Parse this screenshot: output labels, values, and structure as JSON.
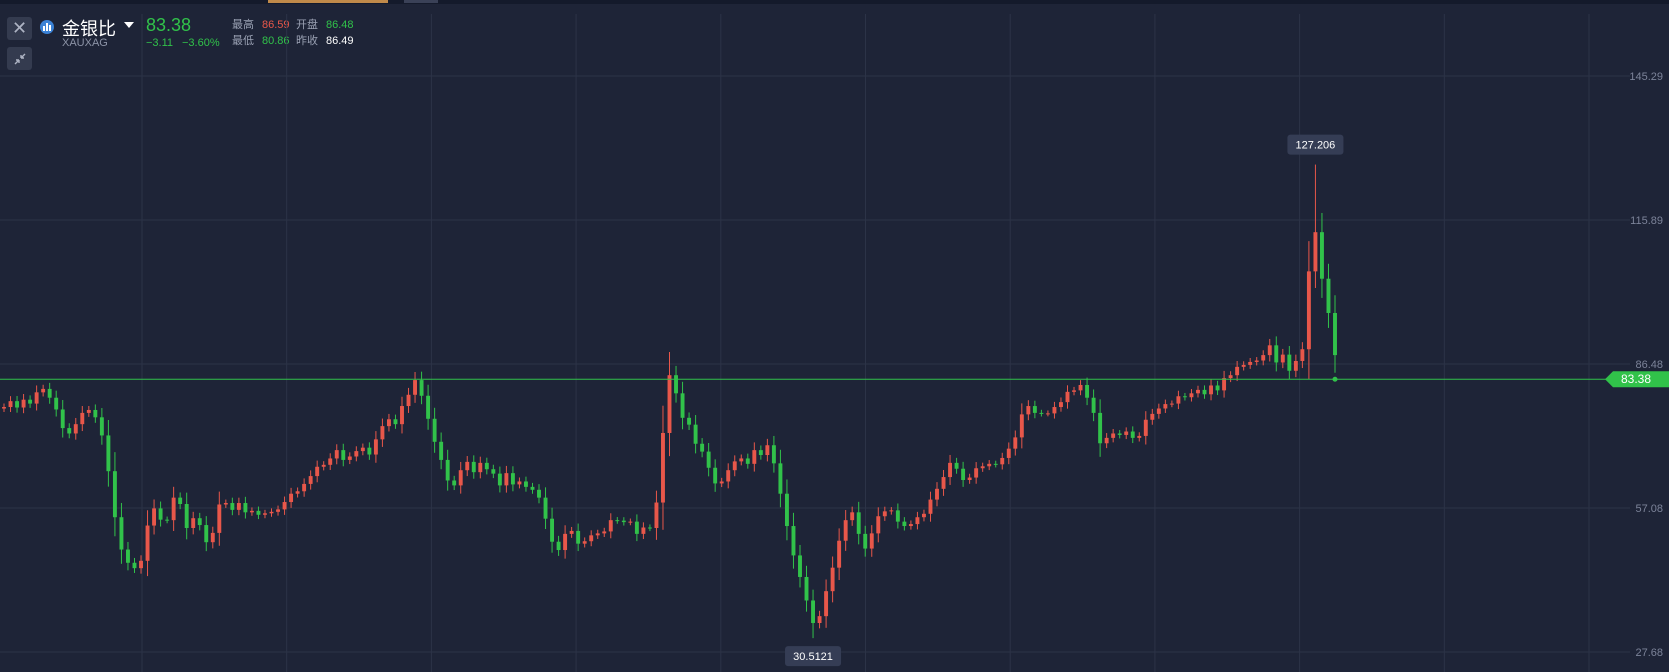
{
  "header": {
    "name": "金银比",
    "code": "XAUXAG",
    "last": "83.38",
    "change": "−3.11",
    "change_pct": "−3.60%",
    "high_label": "最高",
    "high": "86.59",
    "open_label": "开盘",
    "open": "86.48",
    "low_label": "最低",
    "low": "80.86",
    "prev_label": "昨收",
    "prev": "86.49"
  },
  "icons": {
    "close": "close-icon",
    "collapse": "collapse-arrows-icon",
    "chart": "bar-chart-icon",
    "dropdown": "caret-down-icon"
  },
  "colors": {
    "background": "#1e2437",
    "up": "#e8574a",
    "down": "#31c24a",
    "grid": "#2c3347",
    "price_line": "#31c24a"
  },
  "chart_data": {
    "type": "candlestick",
    "ylim": [
      27.68,
      145.29
    ],
    "y_ticks": [
      "145.29",
      "115.89",
      "86.48",
      "57.08",
      "27.68"
    ],
    "y_tick_values": [
      145.29,
      115.89,
      86.48,
      57.08,
      27.68
    ],
    "grid": true,
    "current_price": "83.38",
    "max_label": "127.206",
    "min_label": "30.5121",
    "series": [
      {
        "values": [
          77.7,
          78.9,
          77.6,
          79.2,
          78.4,
          80.7,
          81.4,
          79.6,
          77.2,
          73.4,
          72.3,
          74.2,
          76.5,
          77.1,
          75.6,
          71.9,
          64.6,
          55.2,
          48.6,
          45.9,
          44.8,
          46.3,
          53.5,
          57.0,
          54.7,
          54.6,
          59.2,
          57.9,
          53.0,
          55.0,
          53.6,
          50.1,
          52.0,
          57.8,
          58.1,
          56.7,
          58.1,
          56.2,
          56.5,
          55.7,
          56.0,
          56.3,
          56.8,
          58.3,
          60.0,
          60.5,
          62.0,
          63.6,
          65.5,
          65.9,
          67.2,
          68.9,
          66.9,
          67.6,
          68.7,
          69.4,
          68.0,
          71.1,
          73.8,
          75.2,
          74.2,
          77.9,
          80.2,
          83.2,
          80.0,
          75.3,
          70.6,
          66.9,
          62.7,
          61.7,
          64.8,
          66.5,
          64.4,
          66.3,
          65.0,
          64.1,
          61.7,
          64.2,
          61.9,
          62.5,
          61.4,
          60.8,
          59.2,
          54.9,
          50.2,
          48.5,
          51.8,
          52.4,
          49.8,
          50.3,
          51.5,
          51.9,
          52.3,
          54.6,
          54.5,
          54.2,
          54.3,
          51.8,
          53.1,
          53.0,
          58.2,
          72.4,
          84.2,
          80.5,
          75.5,
          74.1,
          70.2,
          68.6,
          65.3,
          62.1,
          62.5,
          64.8,
          66.6,
          67.2,
          66.1,
          68.9,
          67.9,
          69.9,
          66.2,
          60.0,
          53.4,
          47.4,
          43.0,
          38.2,
          33.6,
          35.0,
          40.1,
          44.9,
          50.4,
          54.6,
          56.2,
          51.8,
          48.8,
          51.9,
          55.4,
          56.4,
          56.6,
          54.3,
          53.4,
          53.8,
          55.2,
          55.9,
          58.8,
          61.0,
          63.4,
          66.3,
          65.1,
          62.8,
          63.3,
          65.2,
          65.6,
          66.1,
          66.0,
          67.3,
          69.2,
          71.5,
          76.2,
          77.9,
          76.5,
          76.4,
          76.4,
          77.7,
          78.7,
          80.8,
          81.1,
          82.2,
          79.6,
          76.5,
          70.3,
          71.4,
          72.3,
          72.0,
          72.7,
          71.4,
          71.8,
          75.1,
          76.3,
          77.4,
          78.3,
          78.4,
          79.9,
          79.7,
          80.5,
          81.2,
          80.3,
          82.1,
          81.1,
          83.6,
          84.2,
          85.9,
          86.3,
          86.9,
          87.2,
          88.3,
          90.3,
          86.8,
          88.4,
          85.1,
          87.1,
          89.5,
          105.4,
          113.4,
          103.9,
          96.9,
          88.3
        ]
      }
    ]
  }
}
